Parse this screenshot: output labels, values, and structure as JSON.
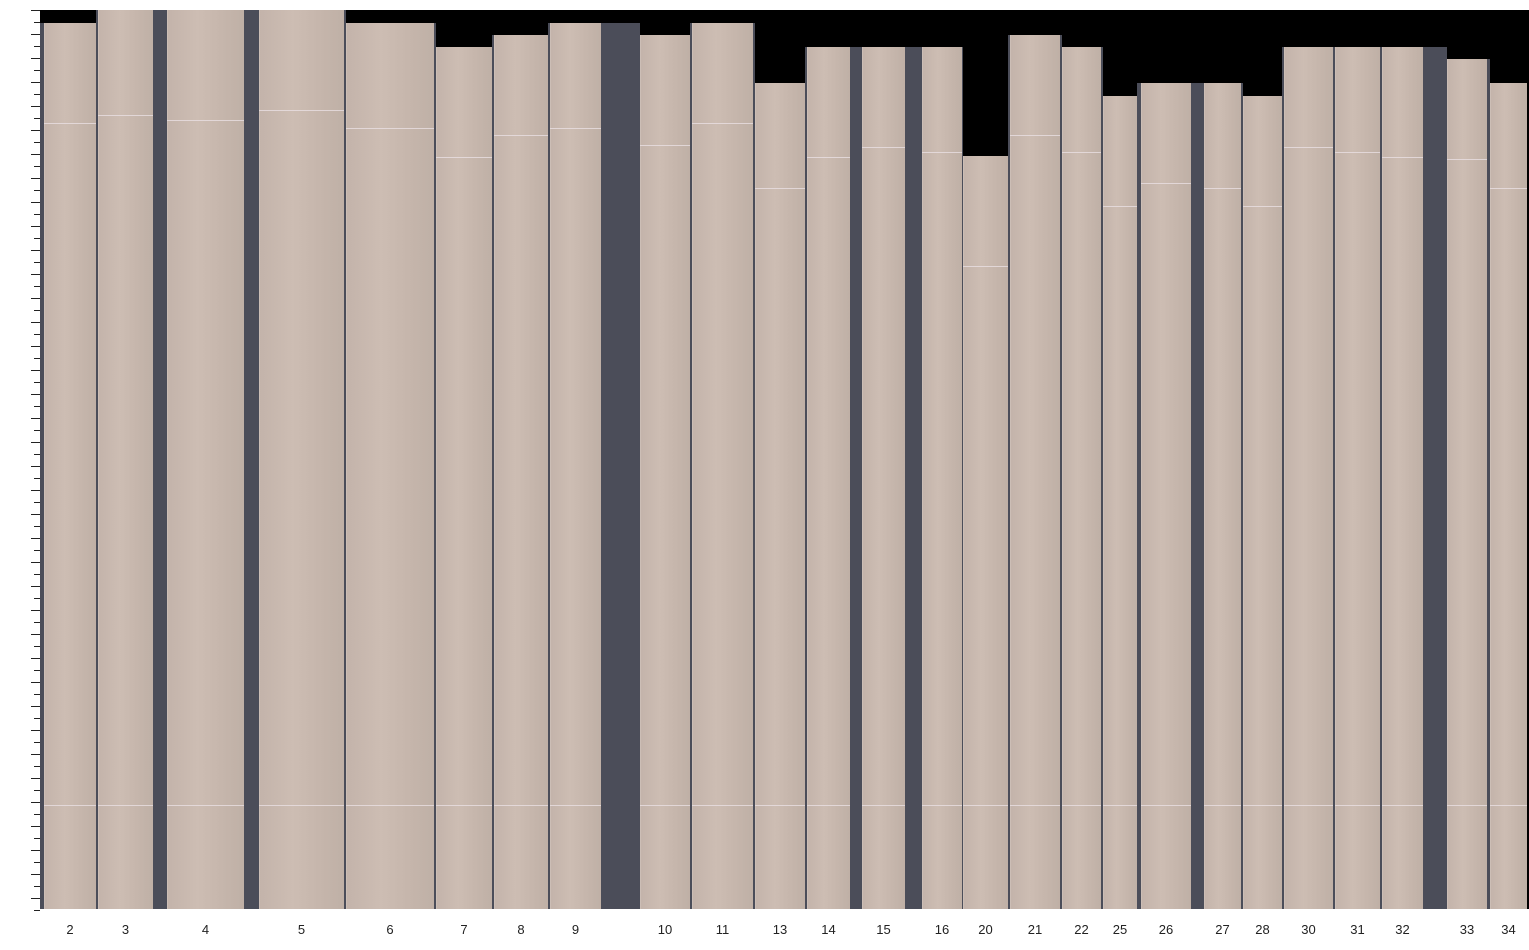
{
  "strips": [
    {
      "label": "2"
    },
    {
      "label": "3"
    },
    {
      "label": "4"
    },
    {
      "label": "5"
    },
    {
      "label": "6"
    },
    {
      "label": "7"
    },
    {
      "label": "8"
    },
    {
      "label": "9"
    },
    {
      "label": "10"
    },
    {
      "label": "11"
    },
    {
      "label": "13"
    },
    {
      "label": "14"
    },
    {
      "label": "15"
    },
    {
      "label": "16"
    },
    {
      "label": "20"
    },
    {
      "label": "21"
    },
    {
      "label": "22"
    },
    {
      "label": "25"
    },
    {
      "label": "26"
    },
    {
      "label": "27"
    },
    {
      "label": "28"
    },
    {
      "label": "30"
    },
    {
      "label": "31"
    },
    {
      "label": "32"
    },
    {
      "label": "33"
    },
    {
      "label": "34"
    }
  ],
  "colors": {
    "veneer": "#c8b8ae",
    "gap": "#4b4d59",
    "background": "#000000"
  }
}
